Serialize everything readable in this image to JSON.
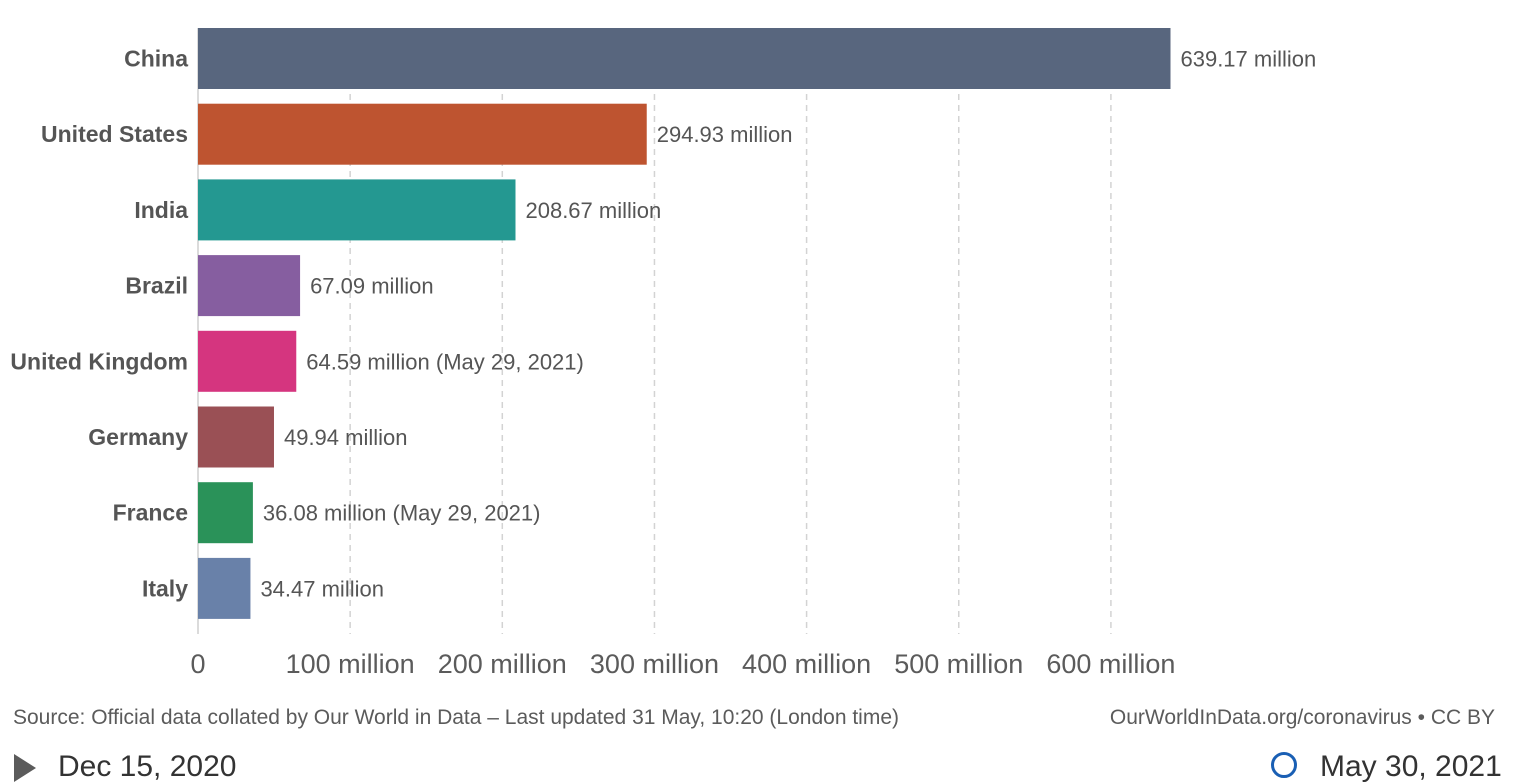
{
  "chart_data": {
    "type": "bar",
    "orientation": "horizontal",
    "categories": [
      "China",
      "United States",
      "India",
      "Brazil",
      "United Kingdom",
      "Germany",
      "France",
      "Italy"
    ],
    "values": [
      639.17,
      294.93,
      208.67,
      67.09,
      64.59,
      49.94,
      36.08,
      34.47
    ],
    "value_labels": [
      "639.17 million",
      "294.93 million",
      "208.67 million",
      "67.09 million",
      "64.59 million (May 29, 2021)",
      "49.94 million",
      "36.08 million (May 29, 2021)",
      "34.47 million"
    ],
    "colors": [
      "#58667e",
      "#be5430",
      "#249891",
      "#865ea0",
      "#d5357f",
      "#9a5055",
      "#2a9259",
      "#6981a9"
    ],
    "xlim": [
      0,
      640
    ],
    "x_ticks": [
      0,
      100,
      200,
      300,
      400,
      500,
      600
    ],
    "x_tick_labels": [
      "0",
      "100 million",
      "200 million",
      "300 million",
      "400 million",
      "500 million",
      "600 million"
    ],
    "grid": "vertical dashed",
    "title": "",
    "xlabel": "",
    "ylabel": ""
  },
  "footer": {
    "source": "Source: Official data collated by Our World in Data – Last updated 31 May, 10:20 (London time)",
    "credit": "OurWorldInData.org/coronavirus • CC BY"
  },
  "timeline": {
    "start_label": "Dec 15, 2020",
    "end_label": "May 30, 2021"
  }
}
